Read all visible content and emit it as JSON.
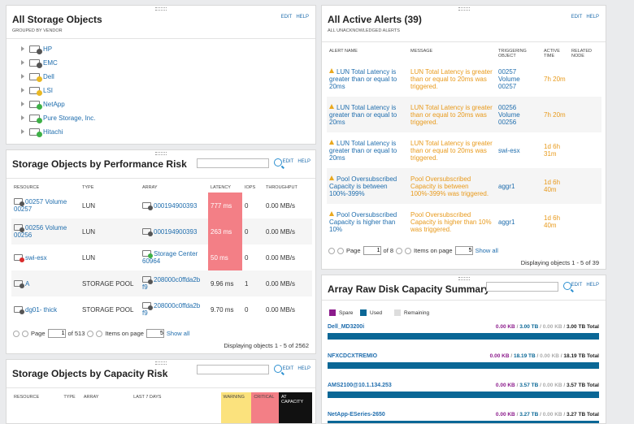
{
  "edit_label": "EDIT",
  "help_label": "HELP",
  "storage_objects": {
    "title": "All Storage Objects",
    "subtitle": "GROUPED BY VENDOR",
    "vendors": [
      {
        "name": "HP",
        "status": "unknown"
      },
      {
        "name": "EMC",
        "status": "unknown"
      },
      {
        "name": "Dell",
        "status": "warning"
      },
      {
        "name": "LSI",
        "status": "warning"
      },
      {
        "name": "NetApp",
        "status": "up"
      },
      {
        "name": "Pure Storage, Inc.",
        "status": "up"
      },
      {
        "name": "Hitachi",
        "status": "up"
      }
    ]
  },
  "alerts": {
    "title": "All Active Alerts (39)",
    "subtitle": "ALL UNACKNOWLEDGED ALERTS",
    "headers": [
      "ALERT NAME",
      "MESSAGE",
      "TRIGGERING OBJECT",
      "ACTIVE TIME",
      "RELATED NODE"
    ],
    "rows": [
      {
        "name": "LUN Total Latency is greater than or equal to 20ms",
        "message": "LUN Total Latency is greater than or equal to 20ms was triggered.",
        "object": "00257 Volume 00257",
        "time": "7h 20m",
        "node": ""
      },
      {
        "name": "LUN Total Latency is greater than or equal to 20ms",
        "message": "LUN Total Latency is greater than or equal to 20ms was triggered.",
        "object": "00256 Volume 00256",
        "time": "7h 20m",
        "node": ""
      },
      {
        "name": "LUN Total Latency is greater than or equal to 20ms",
        "message": "LUN Total Latency is greater than or equal to 20ms was triggered.",
        "object": "swi-esx",
        "time": "1d 6h 31m",
        "node": ""
      },
      {
        "name": "Pool Oversubscribed Capacity is between 100%-399%",
        "message": "Pool Oversubscribed Capacity is between 100%-399% was triggered.",
        "object": "aggr1",
        "time": "1d 6h 40m",
        "node": ""
      },
      {
        "name": "Pool Oversubscribed Capacity is higher than 10%",
        "message": "Pool Oversubscribed Capacity is higher than 10% was triggered.",
        "object": "aggr1",
        "time": "1d 6h 40m",
        "node": ""
      }
    ],
    "pager": {
      "page_label": "Page",
      "page": "1",
      "of_label": "of 8",
      "items_label": "Items on page",
      "items": "5",
      "show_all": "Show all"
    },
    "displaying": "Displaying objects 1 - 5 of 39"
  },
  "perf_risk": {
    "title": "Storage Objects by Performance Risk",
    "headers": [
      "RESOURCE",
      "TYPE",
      "ARRAY",
      "LATENCY",
      "IOPS",
      "THROUGHPUT"
    ],
    "rows": [
      {
        "resource": "00257 Volume 00257",
        "res_status": "unknown",
        "type": "LUN",
        "array": "000194900393",
        "arr_status": "unknown",
        "latency": "777 ms",
        "lat_crit": true,
        "iops": "0",
        "throughput": "0.00 MB/s"
      },
      {
        "resource": "00256 Volume 00256",
        "res_status": "unknown",
        "type": "LUN",
        "array": "000194900393",
        "arr_status": "unknown",
        "latency": "263 ms",
        "lat_crit": true,
        "iops": "0",
        "throughput": "0.00 MB/s"
      },
      {
        "resource": "swi-esx",
        "res_status": "critical",
        "type": "LUN",
        "array": "Storage Center 60964",
        "arr_status": "up",
        "latency": "50 ms",
        "lat_crit": true,
        "iops": "0",
        "throughput": "0.00 MB/s"
      },
      {
        "resource": "A",
        "res_status": "unknown",
        "type": "STORAGE POOL",
        "array": "208000c0ffda2b f9",
        "arr_status": "unknown",
        "latency": "9.96 ms",
        "lat_crit": false,
        "iops": "1",
        "throughput": "0.00 MB/s"
      },
      {
        "resource": "dg01- thick",
        "res_status": "unknown",
        "type": "STORAGE POOL",
        "array": "208000c0ffda2b f9",
        "arr_status": "unknown",
        "latency": "9.70 ms",
        "lat_crit": false,
        "iops": "0",
        "throughput": "0.00 MB/s"
      }
    ],
    "pager": {
      "page_label": "Page",
      "page": "1",
      "of_label": "of 513",
      "items_label": "Items on page",
      "items": "5",
      "show_all": "Show all"
    },
    "displaying": "Displaying objects 1 - 5 of 2562"
  },
  "cap_risk": {
    "title": "Storage Objects by Capacity Risk",
    "headers": [
      "RESOURCE",
      "TYPE",
      "ARRAY",
      "LAST 7 DAYS",
      "WARNING",
      "CRITICAL",
      "AT CAPACITY"
    ],
    "colors": {
      "warning": "#fbe27d",
      "critical": "#f37f86",
      "at_capacity": "#111111"
    }
  },
  "raw_disk": {
    "title": "Array Raw Disk Capacity Summary",
    "legend": [
      {
        "label": "Spare",
        "color": "#8b1a8b"
      },
      {
        "label": "Used",
        "color": "#0a6796"
      },
      {
        "label": "Remaining",
        "color": "#dddddd"
      }
    ],
    "arrays": [
      {
        "name": "Dell_MD3200i",
        "spare": "0.00 KB",
        "used": "3.00 TB",
        "remaining": "0.00 KB",
        "total": "3.00 TB Total",
        "used_fraction": 1.0
      },
      {
        "name": "NFXCDCXTREMIO",
        "spare": "0.00 KB",
        "used": "18.19 TB",
        "remaining": "0.00 KB",
        "total": "18.19 TB Total",
        "used_fraction": 1.0
      },
      {
        "name": "AMS2100@10.1.134.253",
        "spare": "0.00 KB",
        "used": "3.57 TB",
        "remaining": "0.00 KB",
        "total": "3.57 TB Total",
        "used_fraction": 1.0
      },
      {
        "name": "NetApp-ESeries-2650",
        "spare": "0.00 KB",
        "used": "3.27 TB",
        "remaining": "0.00 KB",
        "total": "3.27 TB Total",
        "used_fraction": 1.0
      }
    ]
  }
}
